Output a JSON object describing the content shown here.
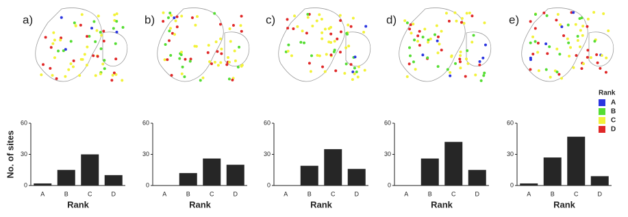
{
  "legend": {
    "title": "Rank",
    "items": [
      {
        "name": "A",
        "color": "#2a35e0"
      },
      {
        "name": "B",
        "color": "#55dd33"
      },
      {
        "name": "C",
        "color": "#f2f23a"
      },
      {
        "name": "D",
        "color": "#e02828"
      }
    ]
  },
  "chart_data": [
    {
      "type": "bar",
      "panel_label": "a)",
      "ylabel": "No. of sites",
      "xlabel": "Rank",
      "categories": [
        "A",
        "B",
        "C",
        "D"
      ],
      "values": [
        2,
        15,
        30,
        10
      ],
      "color": "#262626",
      "ylim": [
        0,
        60
      ],
      "yticks": [
        0,
        30,
        60
      ]
    },
    {
      "type": "bar",
      "panel_label": "b)",
      "xlabel": "Rank",
      "categories": [
        "A",
        "B",
        "C",
        "D"
      ],
      "values": [
        0,
        12,
        26,
        20
      ],
      "color": "#262626",
      "ylim": [
        0,
        60
      ],
      "yticks": [
        0,
        30,
        60
      ]
    },
    {
      "type": "bar",
      "panel_label": "c)",
      "xlabel": "Rank",
      "categories": [
        "A",
        "B",
        "C",
        "D"
      ],
      "values": [
        0,
        19,
        35,
        16
      ],
      "color": "#262626",
      "ylim": [
        0,
        60
      ],
      "yticks": [
        0,
        30,
        60
      ]
    },
    {
      "type": "bar",
      "panel_label": "d)",
      "xlabel": "Rank",
      "categories": [
        "A",
        "B",
        "C",
        "D"
      ],
      "values": [
        0,
        26,
        42,
        15
      ],
      "color": "#262626",
      "ylim": [
        0,
        60
      ],
      "yticks": [
        0,
        30,
        60
      ]
    },
    {
      "type": "bar",
      "panel_label": "e)",
      "xlabel": "Rank",
      "categories": [
        "A",
        "B",
        "C",
        "D"
      ],
      "values": [
        2,
        27,
        47,
        9
      ],
      "color": "#262626",
      "ylim": [
        0,
        60
      ],
      "yticks": [
        0,
        30,
        60
      ]
    }
  ]
}
